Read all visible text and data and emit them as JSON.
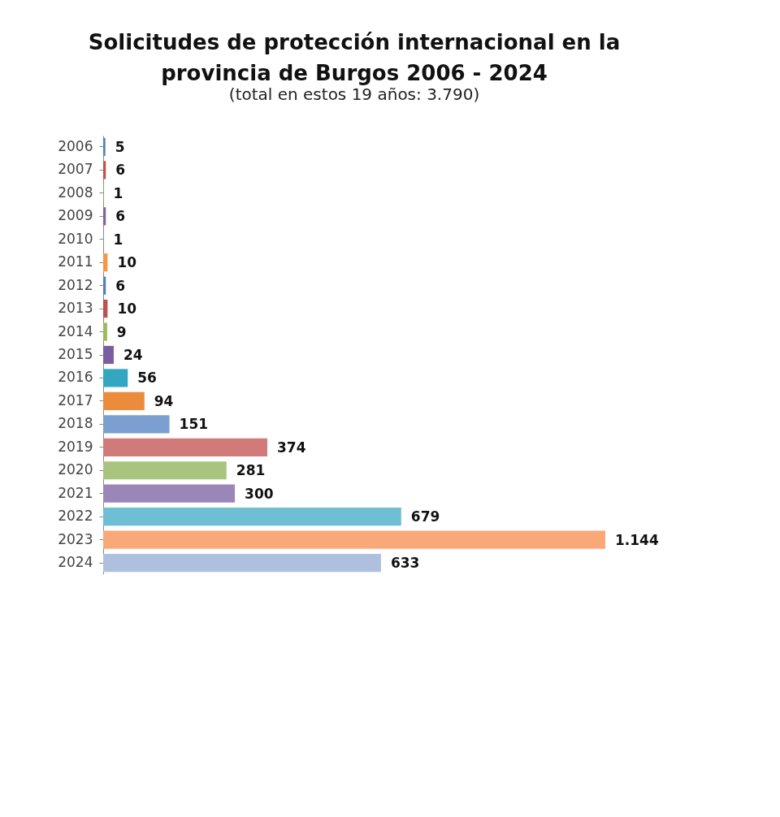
{
  "chart_data": {
    "type": "bar",
    "orientation": "horizontal",
    "title": "Solicitudes de protección internacional en la provincia de Burgos  2006 - 2024",
    "subtitle": "(total en estos 19 años: 3.790)",
    "categories": [
      "2006",
      "2007",
      "2008",
      "2009",
      "2010",
      "2011",
      "2012",
      "2013",
      "2014",
      "2015",
      "2016",
      "2017",
      "2018",
      "2019",
      "2020",
      "2021",
      "2022",
      "2023",
      "2024"
    ],
    "values": [
      5,
      6,
      1,
      6,
      1,
      10,
      6,
      10,
      9,
      24,
      56,
      94,
      151,
      374,
      281,
      300,
      679,
      1144,
      633
    ],
    "value_labels": [
      "5",
      "6",
      "1",
      "6",
      "1",
      "10",
      "6",
      "10",
      "9",
      "24",
      "56",
      "94",
      "151",
      "374",
      "281",
      "300",
      "679",
      "1.144",
      "633"
    ],
    "colors": [
      "#4f81bd",
      "#c0504d",
      "#9bbb59",
      "#8064a2",
      "#4bacc6",
      "#f79646",
      "#4f81bd",
      "#c0504d",
      "#9bbb59",
      "#7a5ea0",
      "#35a6c0",
      "#ec8b3c",
      "#7b9fd1",
      "#d07b7a",
      "#a9c47f",
      "#9b86b8",
      "#6fbfd4",
      "#f9a878",
      "#afc0df"
    ],
    "tick_labels": "y"
  }
}
